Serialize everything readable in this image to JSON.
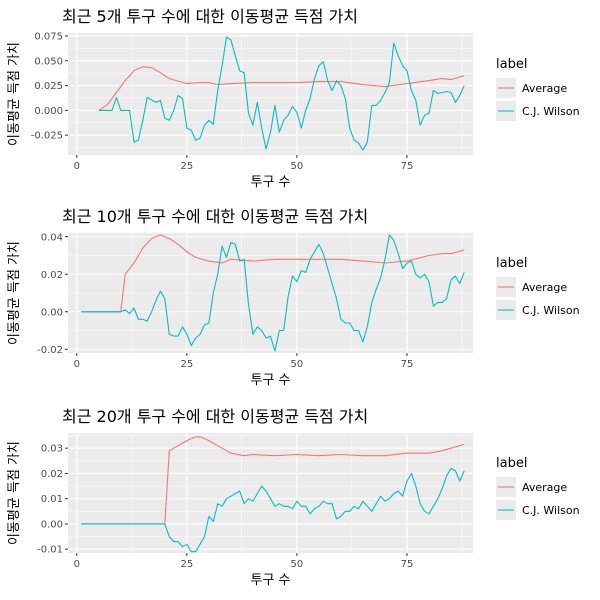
{
  "colors": {
    "average": "#F8766D",
    "wilson": "#00BFC4",
    "panel": "#EBEBEB",
    "grid": "#FFFFFF"
  },
  "chart_data": [
    {
      "type": "line",
      "title": "최근 5개 투구 수에 대한 이동평균 득점 가치",
      "xlabel": "투구 수",
      "ylabel": "이동평균 득점 가치",
      "xlim": [
        -2,
        90
      ],
      "ylim": [
        -0.045,
        0.078
      ],
      "x_ticks": [
        0,
        25,
        50,
        75
      ],
      "y_ticks": [
        -0.025,
        0.0,
        0.025,
        0.05,
        0.075
      ],
      "y_tick_labels": [
        "-0.025",
        "0.000",
        "0.025",
        "0.050",
        "0.075"
      ],
      "legend": {
        "title": "label",
        "position": "right"
      },
      "series": [
        {
          "name": "Average",
          "color": "#F8766D",
          "x": [
            5,
            7,
            9,
            11,
            13,
            15,
            17,
            19,
            21,
            25,
            28,
            30,
            32,
            35,
            40,
            45,
            50,
            55,
            60,
            65,
            70,
            75,
            80,
            83,
            85,
            88
          ],
          "y": [
            0.0,
            0.006,
            0.018,
            0.03,
            0.04,
            0.044,
            0.043,
            0.038,
            0.032,
            0.027,
            0.028,
            0.028,
            0.026,
            0.027,
            0.028,
            0.028,
            0.028,
            0.029,
            0.029,
            0.026,
            0.024,
            0.027,
            0.03,
            0.032,
            0.031,
            0.035
          ]
        },
        {
          "name": "C.J. Wilson",
          "color": "#00BFC4",
          "x": [
            5,
            6,
            8,
            9,
            10,
            12,
            13,
            14,
            15,
            16,
            18,
            19,
            20,
            21,
            22,
            23,
            24,
            25,
            26,
            27,
            28,
            29,
            30,
            31,
            32,
            33,
            34,
            35,
            36,
            37,
            38,
            39,
            40,
            41,
            42,
            43,
            44,
            45,
            46,
            47,
            48,
            49,
            50,
            51,
            52,
            53,
            54,
            55,
            56,
            57,
            58,
            59,
            60,
            61,
            62,
            63,
            64,
            65,
            66,
            67,
            68,
            69,
            70,
            71,
            72,
            73,
            74,
            75,
            76,
            77,
            78,
            79,
            80,
            81,
            82,
            83,
            84,
            85,
            86,
            87,
            88
          ],
          "y": [
            0.0,
            0.0,
            0.0,
            0.013,
            0.0,
            0.0,
            -0.032,
            -0.03,
            -0.01,
            0.013,
            0.008,
            0.01,
            -0.008,
            -0.01,
            0.0,
            0.015,
            0.012,
            -0.018,
            -0.02,
            -0.03,
            -0.028,
            -0.015,
            -0.01,
            -0.014,
            0.02,
            0.045,
            0.074,
            0.071,
            0.055,
            0.04,
            0.038,
            -0.003,
            -0.015,
            0.008,
            -0.018,
            -0.039,
            -0.022,
            0.005,
            -0.022,
            -0.01,
            -0.005,
            0.004,
            -0.002,
            -0.018,
            0.0,
            0.012,
            0.032,
            0.045,
            0.049,
            0.03,
            0.02,
            0.03,
            0.025,
            0.012,
            -0.018,
            -0.03,
            -0.033,
            -0.04,
            -0.032,
            0.005,
            0.005,
            0.01,
            0.018,
            0.028,
            0.068,
            0.055,
            0.045,
            0.04,
            0.02,
            0.01,
            -0.015,
            -0.005,
            -0.003,
            0.02,
            0.017,
            0.018,
            0.019,
            0.018,
            0.008,
            0.015,
            0.025
          ]
        }
      ]
    },
    {
      "type": "line",
      "title": "최근 10개 투구 수에 대한 이동평균 득점 가치",
      "xlabel": "투구 수",
      "ylabel": "이동평균 득점 가치",
      "xlim": [
        -2,
        90
      ],
      "ylim": [
        -0.022,
        0.042
      ],
      "x_ticks": [
        0,
        25,
        50,
        75
      ],
      "y_ticks": [
        -0.02,
        0.0,
        0.02,
        0.04
      ],
      "y_tick_labels": [
        "-0.02",
        "0.00",
        "0.02",
        "0.04"
      ],
      "legend": {
        "title": "label",
        "position": "right"
      },
      "series": [
        {
          "name": "Average",
          "color": "#F8766D",
          "x": [
            1,
            10,
            11,
            13,
            15,
            17,
            19,
            21,
            23,
            25,
            27,
            30,
            33,
            35,
            40,
            45,
            50,
            55,
            60,
            65,
            70,
            75,
            80,
            83,
            85,
            88
          ],
          "y": [
            0.0,
            0.0,
            0.02,
            0.026,
            0.034,
            0.039,
            0.041,
            0.039,
            0.036,
            0.032,
            0.029,
            0.027,
            0.026,
            0.028,
            0.027,
            0.028,
            0.028,
            0.028,
            0.028,
            0.027,
            0.026,
            0.027,
            0.03,
            0.031,
            0.031,
            0.033
          ]
        },
        {
          "name": "C.J. Wilson",
          "color": "#00BFC4",
          "x": [
            1,
            9,
            10,
            11,
            12,
            13,
            14,
            15,
            16,
            17,
            18,
            19,
            20,
            21,
            22,
            23,
            24,
            25,
            26,
            27,
            28,
            29,
            30,
            31,
            32,
            33,
            34,
            35,
            36,
            37,
            38,
            39,
            40,
            41,
            42,
            43,
            44,
            45,
            46,
            47,
            48,
            49,
            50,
            51,
            52,
            53,
            54,
            55,
            56,
            57,
            58,
            59,
            60,
            61,
            62,
            63,
            64,
            65,
            66,
            67,
            68,
            69,
            70,
            71,
            72,
            73,
            74,
            75,
            76,
            77,
            78,
            79,
            80,
            81,
            82,
            83,
            84,
            85,
            86,
            87,
            88
          ],
          "y": [
            0.0,
            0.0,
            0.0,
            0.001,
            -0.001,
            0.002,
            -0.004,
            -0.004,
            -0.005,
            0.0,
            0.006,
            0.011,
            0.007,
            -0.012,
            -0.013,
            -0.013,
            -0.008,
            -0.012,
            -0.018,
            -0.014,
            -0.012,
            -0.007,
            -0.006,
            0.01,
            0.02,
            0.035,
            0.029,
            0.037,
            0.036,
            0.027,
            0.028,
            0.004,
            -0.012,
            -0.008,
            -0.01,
            -0.014,
            -0.013,
            -0.021,
            -0.01,
            -0.01,
            0.008,
            0.019,
            0.016,
            0.022,
            0.021,
            0.028,
            0.032,
            0.036,
            0.031,
            0.023,
            0.015,
            0.007,
            -0.004,
            -0.006,
            -0.006,
            -0.01,
            -0.01,
            -0.016,
            -0.008,
            0.005,
            0.012,
            0.018,
            0.028,
            0.041,
            0.038,
            0.031,
            0.023,
            0.026,
            0.027,
            0.02,
            0.018,
            0.02,
            0.016,
            0.003,
            0.005,
            0.005,
            0.007,
            0.017,
            0.019,
            0.015,
            0.021
          ]
        }
      ]
    },
    {
      "type": "line",
      "title": "최근 20개 투구 수에 대한 이동평균 득점 가치",
      "xlabel": "투구 수",
      "ylabel": "이동평균 득점 가치",
      "xlim": [
        -2,
        90
      ],
      "ylim": [
        -0.0115,
        0.036
      ],
      "x_ticks": [
        0,
        25,
        50,
        75
      ],
      "y_ticks": [
        -0.01,
        0.0,
        0.01,
        0.02,
        0.03
      ],
      "y_tick_labels": [
        "-0.01",
        "0.00",
        "0.01",
        "0.02",
        "0.03"
      ],
      "legend": {
        "title": "label",
        "position": "right"
      },
      "series": [
        {
          "name": "Average",
          "color": "#F8766D",
          "x": [
            1,
            20,
            21,
            23,
            25,
            27,
            28,
            30,
            33,
            35,
            38,
            40,
            45,
            50,
            55,
            60,
            65,
            70,
            75,
            80,
            83,
            85,
            88
          ],
          "y": [
            0.0,
            0.0,
            0.029,
            0.031,
            0.033,
            0.0345,
            0.0345,
            0.033,
            0.03,
            0.028,
            0.027,
            0.0275,
            0.027,
            0.0275,
            0.027,
            0.0275,
            0.027,
            0.027,
            0.028,
            0.028,
            0.029,
            0.03,
            0.0315
          ]
        },
        {
          "name": "C.J. Wilson",
          "color": "#00BFC4",
          "x": [
            1,
            20,
            21,
            22,
            23,
            24,
            25,
            26,
            27,
            28,
            29,
            30,
            31,
            32,
            33,
            34,
            35,
            36,
            37,
            38,
            39,
            40,
            41,
            42,
            43,
            44,
            45,
            46,
            47,
            48,
            49,
            50,
            51,
            52,
            53,
            54,
            55,
            56,
            57,
            58,
            59,
            60,
            61,
            62,
            63,
            64,
            65,
            66,
            67,
            68,
            69,
            70,
            71,
            72,
            73,
            74,
            75,
            76,
            77,
            78,
            79,
            80,
            81,
            82,
            83,
            84,
            85,
            86,
            87,
            88
          ],
          "y": [
            0.0,
            0.0,
            -0.005,
            -0.007,
            -0.007,
            -0.009,
            -0.008,
            -0.011,
            -0.011,
            -0.008,
            -0.005,
            0.003,
            0.001,
            0.008,
            0.007,
            0.01,
            0.011,
            0.012,
            0.013,
            0.008,
            0.01,
            0.009,
            0.012,
            0.015,
            0.013,
            0.01,
            0.007,
            0.008,
            0.007,
            0.007,
            0.006,
            0.009,
            0.007,
            0.007,
            0.004,
            0.006,
            0.007,
            0.009,
            0.008,
            0.008,
            0.002,
            0.003,
            0.005,
            0.005,
            0.007,
            0.006,
            0.009,
            0.007,
            0.005,
            0.008,
            0.011,
            0.009,
            0.01,
            0.012,
            0.013,
            0.011,
            0.017,
            0.02,
            0.015,
            0.008,
            0.005,
            0.004,
            0.007,
            0.01,
            0.014,
            0.019,
            0.022,
            0.021,
            0.017,
            0.021
          ]
        }
      ]
    }
  ]
}
